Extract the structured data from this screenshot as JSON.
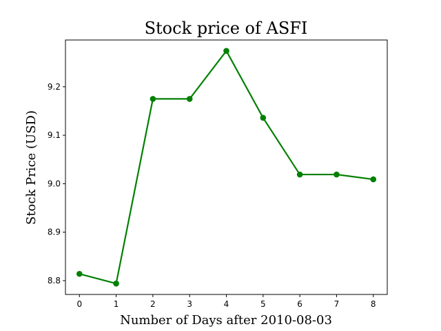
{
  "chart_data": {
    "type": "line",
    "title": "Stock price of ASFI",
    "xlabel": "Number of Days after 2010-08-03",
    "ylabel": "Stock Price (USD)",
    "x": [
      0,
      1,
      2,
      3,
      4,
      5,
      6,
      7,
      8
    ],
    "series": [
      {
        "values": [
          8.814,
          8.794,
          9.175,
          9.175,
          9.274,
          9.136,
          9.019,
          9.019,
          9.009
        ],
        "color": "#008000"
      }
    ],
    "xticks": [
      "0",
      "1",
      "2",
      "3",
      "4",
      "5",
      "6",
      "7",
      "8"
    ],
    "yticks": [
      "8.8",
      "8.9",
      "9.0",
      "9.1",
      "9.2"
    ],
    "xlim": [
      -0.38,
      8.38
    ],
    "ylim": [
      8.7715,
      9.2965
    ],
    "grid": false
  }
}
